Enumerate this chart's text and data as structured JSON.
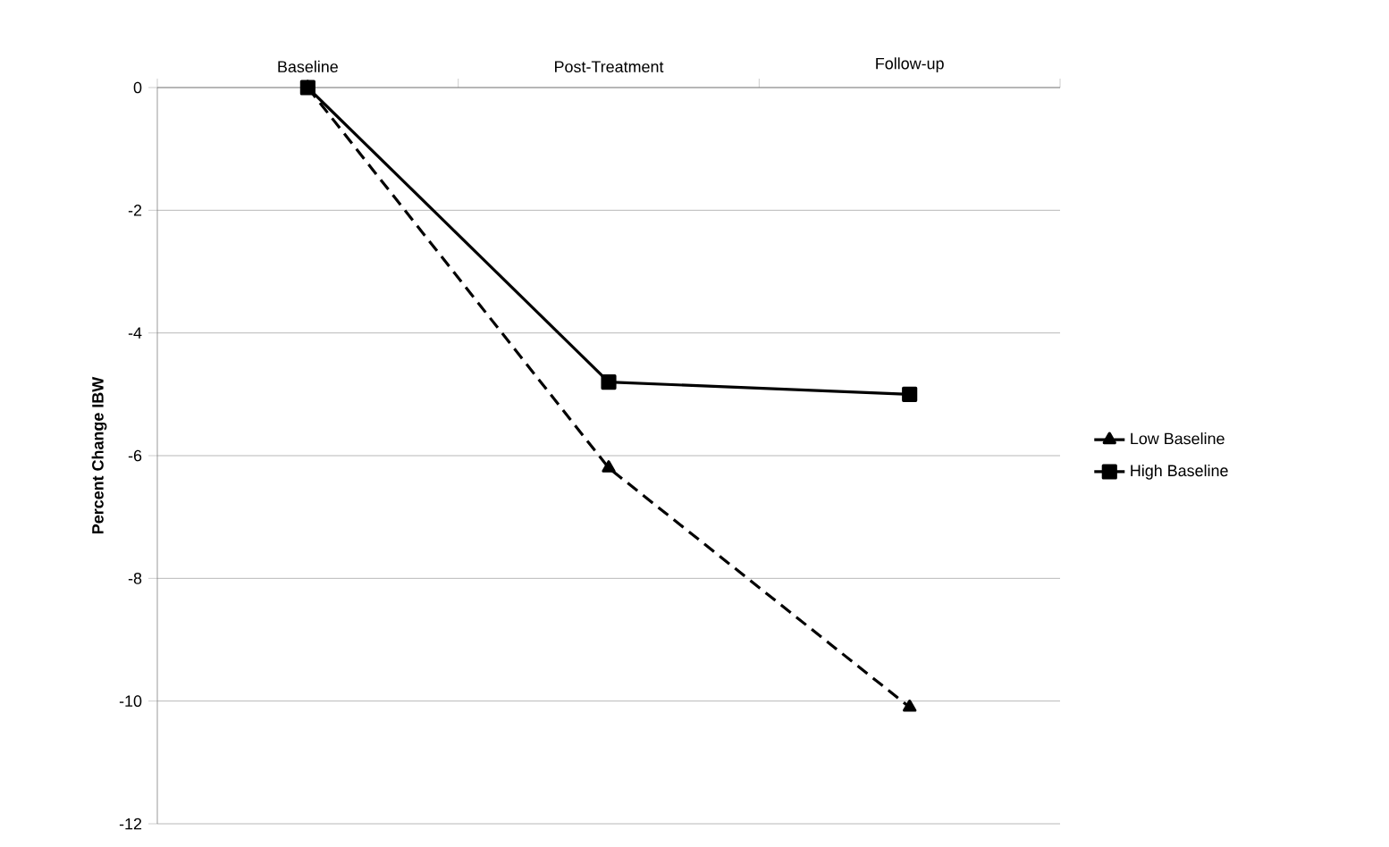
{
  "chart_data": {
    "type": "line",
    "ylabel": "Percent Change IBW",
    "categories": [
      "Baseline",
      "Post-Treatment",
      "Follow-up"
    ],
    "series": [
      {
        "name": "Low Baseline",
        "color": "#000000",
        "values": [
          0,
          -6.2,
          -10.1
        ],
        "marker": "triangle",
        "line_style": "dashed"
      },
      {
        "name": "High Baseline",
        "color": "#000000",
        "values": [
          0,
          -4.8,
          -5.0
        ],
        "marker": "square",
        "line_style": "solid"
      }
    ],
    "ylim": [
      -12,
      0
    ],
    "yticks": [
      -12,
      -10,
      -8,
      -6,
      -4,
      -2,
      0
    ],
    "grid": "y",
    "legend": "right"
  }
}
